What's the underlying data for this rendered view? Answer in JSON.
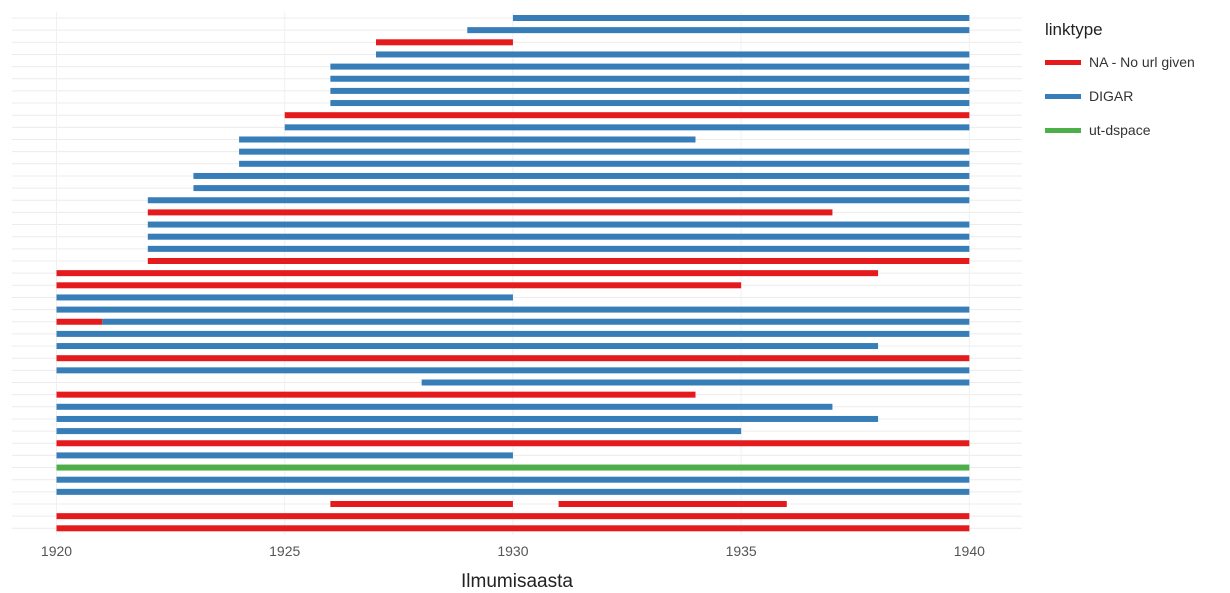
{
  "chart_data": {
    "type": "bar",
    "subtype": "horizontal-range",
    "xlabel": "Ilmumisaasta",
    "ylabel": "",
    "xlim": [
      1919.2,
      1941
    ],
    "xticks": [
      1920,
      1925,
      1930,
      1935,
      1940
    ],
    "grid": true,
    "legend": {
      "title": "linktype",
      "placement": "right",
      "entries": [
        {
          "name": "NA - No url given",
          "color": "#e41a1c"
        },
        {
          "name": "DIGAR",
          "color": "#377eb8"
        },
        {
          "name": "ut-dspace",
          "color": "#4daf4a"
        }
      ]
    },
    "colors": {
      "NA - No url given": "#e41a1c",
      "DIGAR": "#377eb8",
      "ut-dspace": "#4daf4a"
    },
    "rows": [
      [
        {
          "start": 1930,
          "end": 1940,
          "linktype": "DIGAR"
        }
      ],
      [
        {
          "start": 1929,
          "end": 1940,
          "linktype": "DIGAR"
        }
      ],
      [
        {
          "start": 1927,
          "end": 1930,
          "linktype": "NA - No url given"
        }
      ],
      [
        {
          "start": 1927,
          "end": 1940,
          "linktype": "DIGAR"
        }
      ],
      [
        {
          "start": 1926,
          "end": 1940,
          "linktype": "DIGAR"
        }
      ],
      [
        {
          "start": 1926,
          "end": 1940,
          "linktype": "DIGAR"
        }
      ],
      [
        {
          "start": 1926,
          "end": 1940,
          "linktype": "DIGAR"
        }
      ],
      [
        {
          "start": 1926,
          "end": 1940,
          "linktype": "DIGAR"
        }
      ],
      [
        {
          "start": 1925,
          "end": 1940,
          "linktype": "NA - No url given"
        }
      ],
      [
        {
          "start": 1925,
          "end": 1940,
          "linktype": "DIGAR"
        }
      ],
      [
        {
          "start": 1924,
          "end": 1934,
          "linktype": "DIGAR"
        }
      ],
      [
        {
          "start": 1924,
          "end": 1940,
          "linktype": "DIGAR"
        }
      ],
      [
        {
          "start": 1924,
          "end": 1940,
          "linktype": "DIGAR"
        }
      ],
      [
        {
          "start": 1923,
          "end": 1940,
          "linktype": "DIGAR"
        }
      ],
      [
        {
          "start": 1923,
          "end": 1940,
          "linktype": "DIGAR"
        }
      ],
      [
        {
          "start": 1922,
          "end": 1940,
          "linktype": "DIGAR"
        }
      ],
      [
        {
          "start": 1922,
          "end": 1937,
          "linktype": "NA - No url given"
        }
      ],
      [
        {
          "start": 1922,
          "end": 1940,
          "linktype": "DIGAR"
        }
      ],
      [
        {
          "start": 1922,
          "end": 1940,
          "linktype": "DIGAR"
        }
      ],
      [
        {
          "start": 1922,
          "end": 1940,
          "linktype": "DIGAR"
        }
      ],
      [
        {
          "start": 1922,
          "end": 1940,
          "linktype": "NA - No url given"
        }
      ],
      [
        {
          "start": 1920,
          "end": 1938,
          "linktype": "NA - No url given"
        }
      ],
      [
        {
          "start": 1920,
          "end": 1935,
          "linktype": "NA - No url given"
        }
      ],
      [
        {
          "start": 1920,
          "end": 1930,
          "linktype": "DIGAR"
        }
      ],
      [
        {
          "start": 1920,
          "end": 1940,
          "linktype": "DIGAR"
        }
      ],
      [
        {
          "start": 1921,
          "end": 1940,
          "linktype": "DIGAR"
        },
        {
          "start": 1920,
          "end": 1921,
          "linktype": "NA - No url given"
        }
      ],
      [
        {
          "start": 1920,
          "end": 1940,
          "linktype": "DIGAR"
        }
      ],
      [
        {
          "start": 1920,
          "end": 1938,
          "linktype": "DIGAR"
        }
      ],
      [
        {
          "start": 1920,
          "end": 1940,
          "linktype": "NA - No url given"
        }
      ],
      [
        {
          "start": 1920,
          "end": 1940,
          "linktype": "DIGAR"
        }
      ],
      [
        {
          "start": 1928,
          "end": 1940,
          "linktype": "DIGAR"
        }
      ],
      [
        {
          "start": 1920,
          "end": 1934,
          "linktype": "NA - No url given"
        }
      ],
      [
        {
          "start": 1920,
          "end": 1937,
          "linktype": "DIGAR"
        }
      ],
      [
        {
          "start": 1920,
          "end": 1938,
          "linktype": "DIGAR"
        }
      ],
      [
        {
          "start": 1920,
          "end": 1935,
          "linktype": "DIGAR"
        }
      ],
      [
        {
          "start": 1920,
          "end": 1940,
          "linktype": "NA - No url given"
        }
      ],
      [
        {
          "start": 1920,
          "end": 1930,
          "linktype": "DIGAR"
        }
      ],
      [
        {
          "start": 1920,
          "end": 1940,
          "linktype": "ut-dspace"
        }
      ],
      [
        {
          "start": 1920,
          "end": 1940,
          "linktype": "DIGAR"
        }
      ],
      [
        {
          "start": 1920,
          "end": 1940,
          "linktype": "DIGAR"
        }
      ],
      [
        {
          "start": 1926,
          "end": 1930,
          "linktype": "NA - No url given"
        },
        {
          "start": 1931,
          "end": 1936,
          "linktype": "NA - No url given"
        }
      ],
      [
        {
          "start": 1920,
          "end": 1940,
          "linktype": "NA - No url given"
        }
      ],
      [
        {
          "start": 1920,
          "end": 1940,
          "linktype": "NA - No url given"
        }
      ]
    ]
  }
}
